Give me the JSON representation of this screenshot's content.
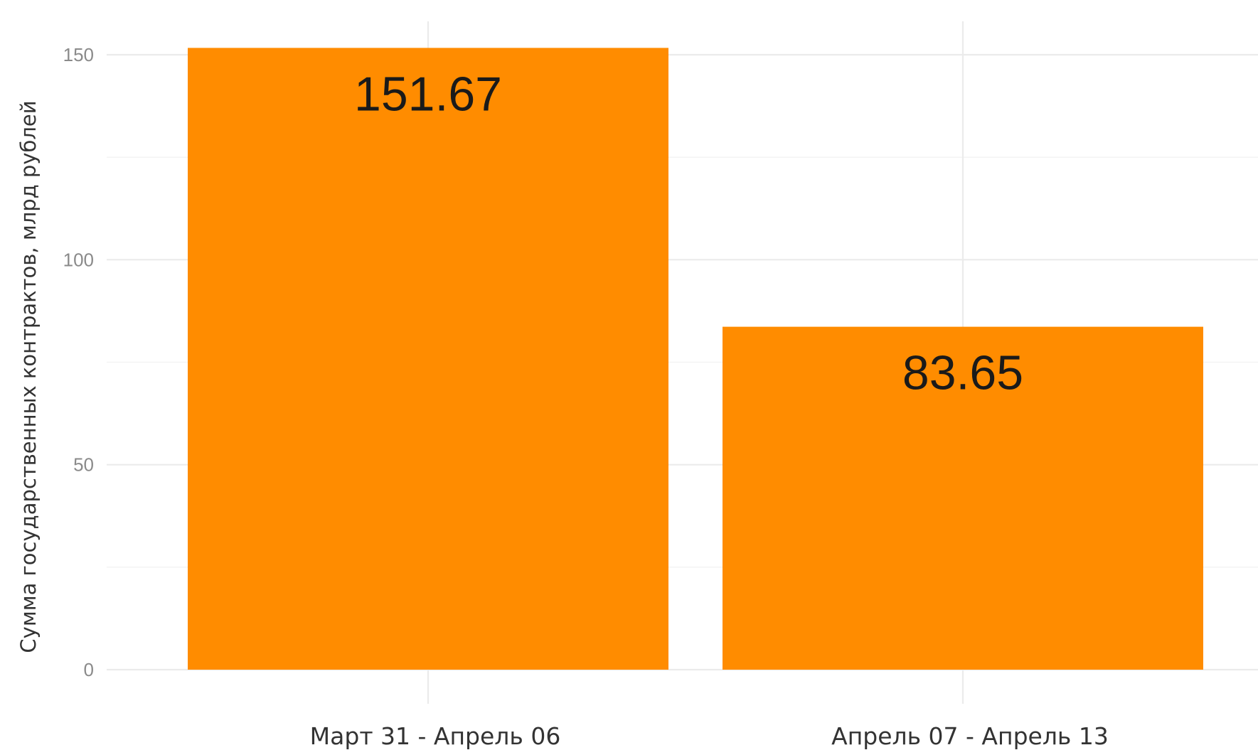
{
  "chart_data": {
    "type": "bar",
    "categories": [
      "Март 31 - Апрель 06",
      "Апрель 07 - Апрель 13"
    ],
    "values": [
      151.67,
      83.65
    ],
    "data_labels": [
      "151.67",
      "83.65"
    ],
    "title": "",
    "xlabel": "",
    "ylabel": "Сумма государственных контрактов, млрд рублей",
    "ylim": [
      0,
      157
    ],
    "yticks": [
      0,
      50,
      100,
      150
    ],
    "grid": true,
    "legend": "none",
    "bar_color": "#ff8c00"
  }
}
